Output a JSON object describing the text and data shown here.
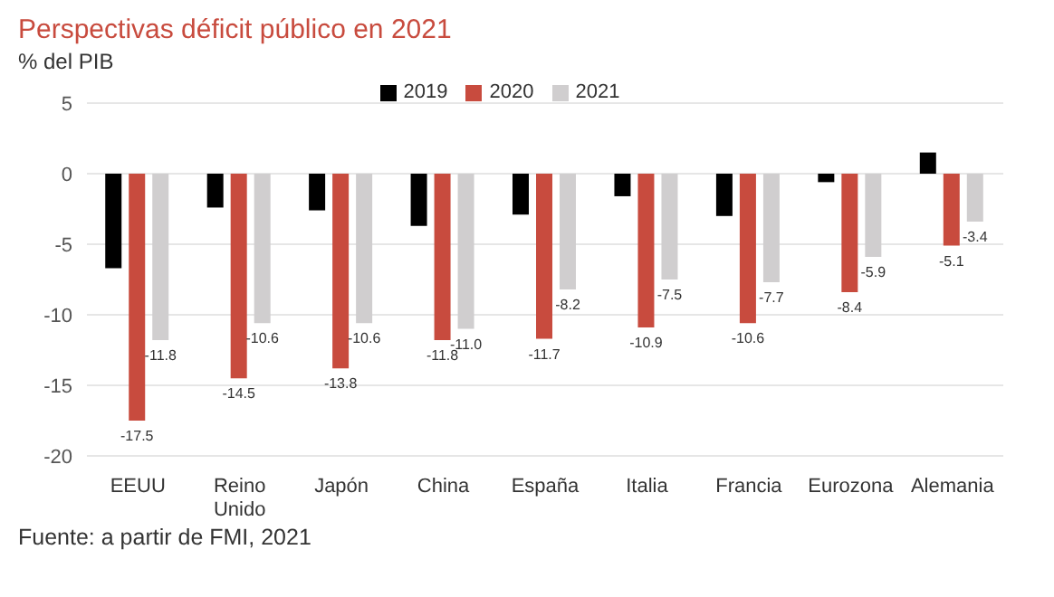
{
  "chart_data": {
    "type": "bar",
    "title": "Perspectivas déficit público en 2021",
    "subtitle": "% del PIB",
    "annotations": [
      "Fuente: a partir de FMI, 2021"
    ],
    "categories": [
      "EEUU",
      "Reino Unido",
      "Japón",
      "China",
      "España",
      "Italia",
      "Francia",
      "Eurozona",
      "Alemania"
    ],
    "series": [
      {
        "name": "2019",
        "color": "#000000",
        "values": [
          -6.7,
          -2.4,
          -2.6,
          -3.7,
          -2.9,
          -1.6,
          -3.0,
          -0.6,
          1.5
        ]
      },
      {
        "name": "2020",
        "color": "#c84b3e",
        "values": [
          -17.5,
          -14.5,
          -13.8,
          -11.8,
          -11.7,
          -10.9,
          -10.6,
          -8.4,
          -5.1
        ],
        "value_labels": [
          "-17.5",
          "-14.5",
          "-13.8",
          "-11.8",
          "-11.7",
          "-10.9",
          "-10.6",
          "-8.4",
          "-5.1"
        ]
      },
      {
        "name": "2021",
        "color": "#d0cecf",
        "values": [
          -11.8,
          -10.6,
          -10.6,
          -11.0,
          -8.2,
          -7.5,
          -7.7,
          -5.9,
          -3.4
        ],
        "value_labels": [
          "-11.8",
          "-10.6",
          "-10.6",
          "-11.0",
          "-8.2",
          "-7.5",
          "-7.7",
          "-5.9",
          "-3.4"
        ]
      }
    ],
    "ylim": [
      -20,
      5
    ],
    "yticks": [
      -20,
      -15,
      -10,
      -5,
      0,
      5
    ],
    "grid": "y",
    "legend": "top"
  }
}
